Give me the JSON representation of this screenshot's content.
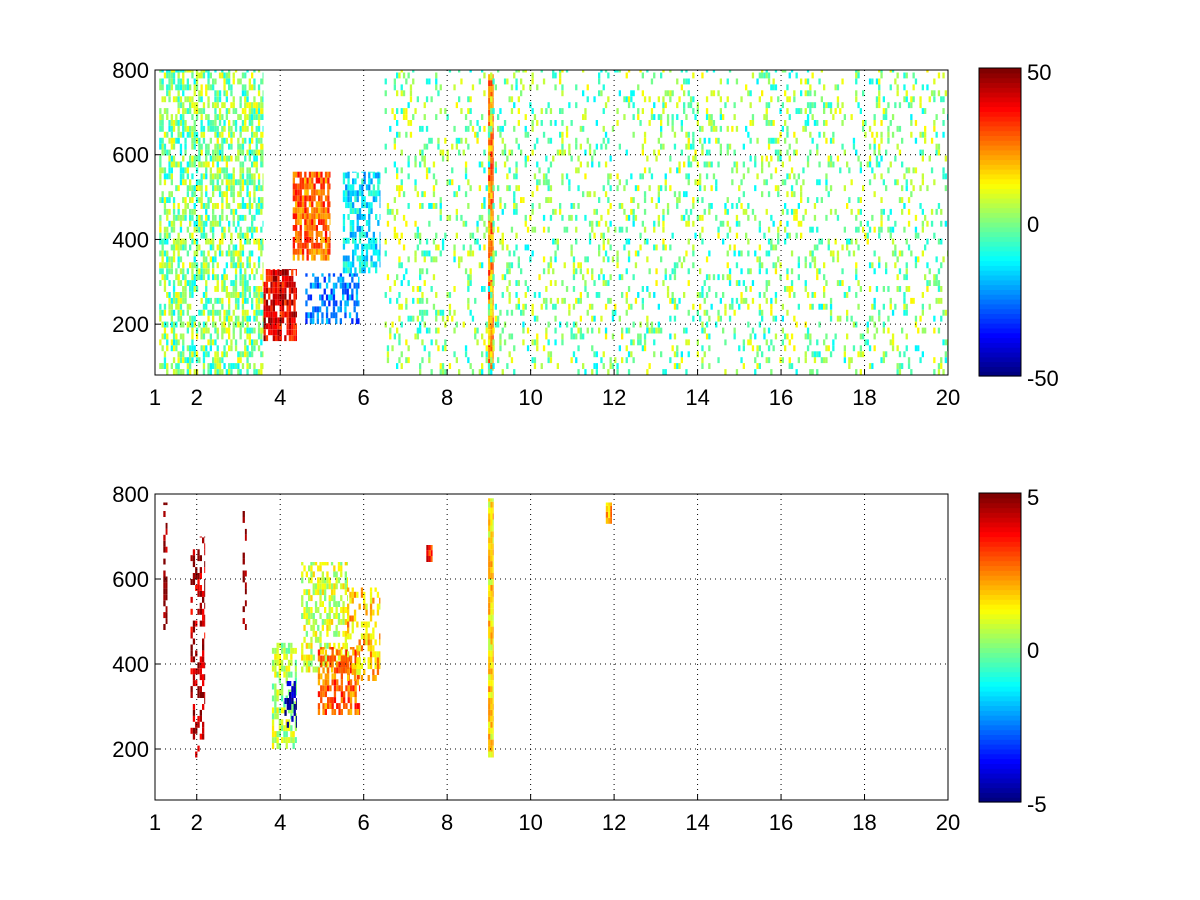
{
  "chart_data": [
    {
      "type": "heatmap",
      "title": "",
      "xlabel": "",
      "ylabel": "",
      "xlim": [
        1,
        20
      ],
      "ylim": [
        80,
        800
      ],
      "x_ticks": [
        1,
        2,
        4,
        6,
        8,
        10,
        12,
        14,
        16,
        18,
        20
      ],
      "y_ticks": [
        200,
        400,
        600,
        800
      ],
      "grid": true,
      "colormap": "jet",
      "colorbar": {
        "min": -50,
        "max": 50,
        "ticks": [
          -50,
          0,
          50
        ]
      },
      "features": [
        {
          "x": [
            1.1,
            3.6
          ],
          "y": [
            80,
            800
          ],
          "level": 0.0,
          "density": 0.55,
          "note_value": "low-amplitude noise"
        },
        {
          "x": [
            3.6,
            4.4
          ],
          "y": [
            160,
            330
          ],
          "level": 40,
          "density": 0.8
        },
        {
          "x": [
            4.3,
            5.2
          ],
          "y": [
            350,
            560
          ],
          "level": 28,
          "density": 0.75
        },
        {
          "x": [
            4.6,
            5.9
          ],
          "y": [
            200,
            320
          ],
          "level": -25,
          "density": 0.5
        },
        {
          "x": [
            5.5,
            6.4
          ],
          "y": [
            320,
            560
          ],
          "level": -15,
          "density": 0.6
        },
        {
          "x": [
            8.98,
            9.1
          ],
          "y": [
            90,
            790
          ],
          "level": 25,
          "density": 1.0
        },
        {
          "x": [
            6.5,
            20
          ],
          "y": [
            80,
            800
          ],
          "level": 0.0,
          "density": 0.18
        }
      ]
    },
    {
      "type": "heatmap",
      "title": "",
      "xlabel": "",
      "ylabel": "",
      "xlim": [
        1,
        20
      ],
      "ylim": [
        80,
        800
      ],
      "x_ticks": [
        1,
        2,
        4,
        6,
        8,
        10,
        12,
        14,
        16,
        18,
        20
      ],
      "y_ticks": [
        200,
        400,
        600,
        800
      ],
      "grid": true,
      "colormap": "jet",
      "colorbar": {
        "min": -5,
        "max": 5,
        "ticks": [
          -5,
          0,
          5
        ]
      },
      "features": [
        {
          "x": [
            1.2,
            1.3
          ],
          "y": [
            480,
            780
          ],
          "level": 5,
          "density": 0.6
        },
        {
          "x": [
            1.85,
            2.2
          ],
          "y": [
            180,
            700
          ],
          "level": 4.5,
          "density": 0.35
        },
        {
          "x": [
            3.1,
            3.2
          ],
          "y": [
            480,
            760
          ],
          "level": 5,
          "density": 0.4
        },
        {
          "x": [
            3.8,
            4.4
          ],
          "y": [
            200,
            450
          ],
          "level": 0.5,
          "density": 0.6
        },
        {
          "x": [
            4.1,
            4.4
          ],
          "y": [
            250,
            360
          ],
          "level": -4.5,
          "density": 0.5
        },
        {
          "x": [
            4.5,
            5.6
          ],
          "y": [
            380,
            640
          ],
          "level": 0.8,
          "density": 0.55
        },
        {
          "x": [
            4.9,
            5.9
          ],
          "y": [
            280,
            440
          ],
          "level": 2.8,
          "density": 0.6
        },
        {
          "x": [
            5.6,
            6.4
          ],
          "y": [
            360,
            580
          ],
          "level": 1.8,
          "density": 0.5
        },
        {
          "x": [
            7.5,
            7.65
          ],
          "y": [
            640,
            680
          ],
          "level": 3.5,
          "density": 1.0
        },
        {
          "x": [
            8.98,
            9.1
          ],
          "y": [
            180,
            790
          ],
          "level": 1.5,
          "density": 1.0
        },
        {
          "x": [
            11.8,
            11.95
          ],
          "y": [
            730,
            780
          ],
          "level": 2.2,
          "density": 1.0
        }
      ]
    }
  ]
}
